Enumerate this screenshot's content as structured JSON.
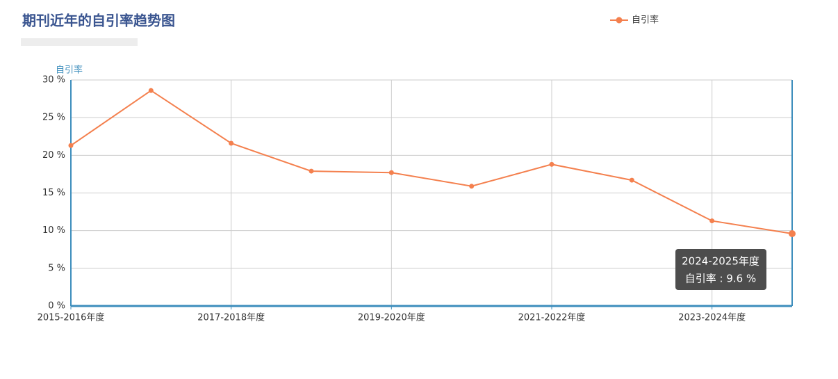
{
  "chart_data": {
    "type": "line",
    "title": "期刊近年的自引率趋势图",
    "y_axis_label": "自引率",
    "categories": [
      "2015-2016年度",
      null,
      "2017-2018年度",
      null,
      "2019-2020年度",
      null,
      "2021-2022年度",
      null,
      "2023-2024年度",
      null
    ],
    "series": [
      {
        "name": "自引率",
        "color": "#f4804e",
        "values": [
          21.3,
          28.6,
          21.6,
          17.9,
          17.7,
          15.9,
          18.8,
          16.7,
          11.3,
          9.6
        ]
      }
    ],
    "ylim": [
      0,
      30
    ],
    "yticks": [
      {
        "value": 0,
        "label": "0 %"
      },
      {
        "value": 5,
        "label": "5 %"
      },
      {
        "value": 10,
        "label": "10 %"
      },
      {
        "value": 15,
        "label": "15 %"
      },
      {
        "value": 20,
        "label": "20 %"
      },
      {
        "value": 25,
        "label": "25 %"
      },
      {
        "value": 30,
        "label": "30 %"
      }
    ],
    "grid": true,
    "legend": "top",
    "tooltip": {
      "title": "2024-2025年度",
      "text": "自引率 : 9.6 %"
    }
  }
}
